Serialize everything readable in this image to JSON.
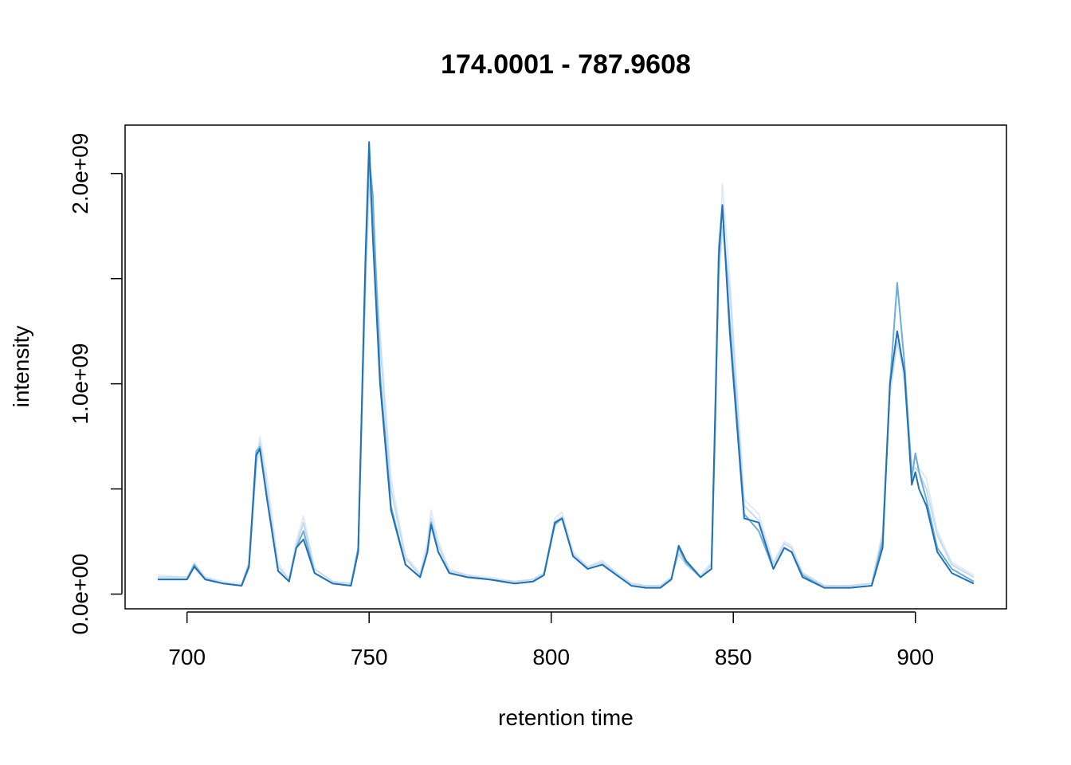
{
  "chart_data": {
    "type": "line",
    "title": "174.0001 - 787.9608",
    "xlabel": "retention time",
    "ylabel": "intensity",
    "xlim": [
      683,
      925
    ],
    "ylim": [
      -70000000.0,
      2230000000.0
    ],
    "x_ticks": [
      700,
      750,
      800,
      850,
      900
    ],
    "x_tick_labels": [
      "700",
      "750",
      "800",
      "850",
      "900"
    ],
    "y_ticks": [
      0,
      500000000.0,
      1000000000.0,
      1500000000.0,
      2000000000.0
    ],
    "y_tick_labels": [
      "0.0e+00",
      "",
      "1.0e+09",
      "",
      "2.0e+09"
    ],
    "grid": false,
    "series": [
      {
        "color": "#deebf7",
        "x": [
          692,
          700,
          702,
          705,
          710,
          715,
          717,
          719,
          720,
          722,
          725,
          728,
          730,
          732,
          735,
          740,
          745,
          747,
          749,
          750,
          751,
          753,
          756,
          760,
          764,
          766,
          767,
          769,
          772,
          777,
          783,
          790,
          795,
          798,
          801,
          803,
          806,
          810,
          814,
          818,
          822,
          826,
          830,
          833,
          835,
          837,
          841,
          844,
          845,
          846,
          847,
          849,
          853,
          857,
          861,
          864,
          866,
          869,
          875,
          882,
          888,
          891,
          893,
          895,
          897,
          899,
          900,
          901,
          903,
          906,
          910,
          916
        ],
        "y": [
          90000000.0,
          80000000.0,
          150000000.0,
          80000000.0,
          60000000.0,
          50000000.0,
          150000000.0,
          600000000.0,
          750000000.0,
          550000000.0,
          150000000.0,
          70000000.0,
          250000000.0,
          370000000.0,
          120000000.0,
          60000000.0,
          50000000.0,
          220000000.0,
          1500000000.0,
          2000000000.0,
          1750000000.0,
          1250000000.0,
          550000000.0,
          180000000.0,
          100000000.0,
          250000000.0,
          400000000.0,
          250000000.0,
          120000000.0,
          90000000.0,
          80000000.0,
          60000000.0,
          70000000.0,
          100000000.0,
          360000000.0,
          390000000.0,
          200000000.0,
          130000000.0,
          160000000.0,
          100000000.0,
          50000000.0,
          40000000.0,
          40000000.0,
          80000000.0,
          200000000.0,
          150000000.0,
          90000000.0,
          150000000.0,
          800000000.0,
          1550000000.0,
          1950000000.0,
          1500000000.0,
          450000000.0,
          380000000.0,
          150000000.0,
          250000000.0,
          230000000.0,
          100000000.0,
          40000000.0,
          40000000.0,
          50000000.0,
          300000000.0,
          1000000000.0,
          1250000000.0,
          1000000000.0,
          620000000.0,
          650000000.0,
          600000000.0,
          550000000.0,
          300000000.0,
          150000000.0,
          90000000.0
        ]
      },
      {
        "color": "#c6dbef",
        "x": [
          692,
          700,
          702,
          705,
          710,
          715,
          717,
          719,
          720,
          722,
          725,
          728,
          730,
          732,
          735,
          740,
          745,
          747,
          749,
          750,
          751,
          753,
          756,
          760,
          764,
          766,
          767,
          769,
          772,
          777,
          783,
          790,
          795,
          798,
          801,
          803,
          806,
          810,
          814,
          818,
          822,
          826,
          830,
          833,
          835,
          837,
          841,
          844,
          845,
          846,
          847,
          849,
          853,
          857,
          861,
          864,
          866,
          869,
          875,
          882,
          888,
          891,
          893,
          895,
          897,
          899,
          900,
          901,
          903,
          906,
          910,
          916
        ],
        "y": [
          80000000.0,
          80000000.0,
          130000000.0,
          80000000.0,
          50000000.0,
          40000000.0,
          120000000.0,
          600000000.0,
          720000000.0,
          500000000.0,
          130000000.0,
          70000000.0,
          230000000.0,
          340000000.0,
          120000000.0,
          60000000.0,
          50000000.0,
          200000000.0,
          1450000000.0,
          1950000000.0,
          1800000000.0,
          1200000000.0,
          500000000.0,
          170000000.0,
          90000000.0,
          220000000.0,
          360000000.0,
          230000000.0,
          110000000.0,
          90000000.0,
          70000000.0,
          60000000.0,
          70000000.0,
          100000000.0,
          340000000.0,
          370000000.0,
          190000000.0,
          130000000.0,
          150000000.0,
          100000000.0,
          50000000.0,
          40000000.0,
          40000000.0,
          80000000.0,
          190000000.0,
          140000000.0,
          80000000.0,
          140000000.0,
          750000000.0,
          1500000000.0,
          1750000000.0,
          1450000000.0,
          420000000.0,
          350000000.0,
          140000000.0,
          240000000.0,
          220000000.0,
          100000000.0,
          40000000.0,
          40000000.0,
          50000000.0,
          280000000.0,
          950000000.0,
          1200000000.0,
          1050000000.0,
          600000000.0,
          600000000.0,
          580000000.0,
          500000000.0,
          280000000.0,
          140000000.0,
          80000000.0
        ]
      },
      {
        "color": "#6baed6",
        "x": [
          692,
          700,
          702,
          705,
          710,
          715,
          717,
          719,
          720,
          722,
          725,
          728,
          730,
          732,
          735,
          740,
          745,
          747,
          749,
          750,
          751,
          753,
          756,
          760,
          764,
          766,
          767,
          769,
          772,
          777,
          783,
          790,
          795,
          798,
          801,
          803,
          806,
          810,
          814,
          818,
          822,
          826,
          830,
          833,
          835,
          837,
          841,
          844,
          845,
          846,
          847,
          849,
          853,
          857,
          861,
          864,
          866,
          869,
          875,
          882,
          888,
          891,
          893,
          895,
          897,
          899,
          900,
          901,
          903,
          906,
          910,
          916
        ],
        "y": [
          70000000.0,
          70000000.0,
          140000000.0,
          70000000.0,
          50000000.0,
          40000000.0,
          140000000.0,
          680000000.0,
          700000000.0,
          450000000.0,
          110000000.0,
          60000000.0,
          220000000.0,
          300000000.0,
          100000000.0,
          50000000.0,
          40000000.0,
          220000000.0,
          1550000000.0,
          2080000000.0,
          1900000000.0,
          1050000000.0,
          420000000.0,
          140000000.0,
          80000000.0,
          200000000.0,
          340000000.0,
          200000000.0,
          100000000.0,
          80000000.0,
          70000000.0,
          50000000.0,
          60000000.0,
          90000000.0,
          330000000.0,
          360000000.0,
          180000000.0,
          120000000.0,
          140000000.0,
          90000000.0,
          40000000.0,
          30000000.0,
          30000000.0,
          70000000.0,
          220000000.0,
          150000000.0,
          80000000.0,
          120000000.0,
          800000000.0,
          1650000000.0,
          1850000000.0,
          1300000000.0,
          380000000.0,
          300000000.0,
          120000000.0,
          220000000.0,
          200000000.0,
          90000000.0,
          30000000.0,
          30000000.0,
          40000000.0,
          250000000.0,
          1000000000.0,
          1480000000.0,
          1100000000.0,
          550000000.0,
          670000000.0,
          580000000.0,
          450000000.0,
          220000000.0,
          120000000.0,
          60000000.0
        ]
      },
      {
        "color": "#2171b5",
        "x": [
          692,
          700,
          702,
          705,
          710,
          715,
          717,
          719,
          720,
          722,
          725,
          728,
          730,
          732,
          735,
          740,
          745,
          747,
          749,
          750,
          751,
          753,
          756,
          760,
          764,
          766,
          767,
          769,
          772,
          777,
          783,
          790,
          795,
          798,
          801,
          803,
          806,
          810,
          814,
          818,
          822,
          826,
          830,
          833,
          835,
          837,
          841,
          844,
          845,
          846,
          847,
          849,
          853,
          857,
          861,
          864,
          866,
          869,
          875,
          882,
          888,
          891,
          893,
          895,
          897,
          899,
          900,
          901,
          903,
          906,
          910,
          916
        ],
        "y": [
          70000000.0,
          70000000.0,
          130000000.0,
          70000000.0,
          50000000.0,
          40000000.0,
          130000000.0,
          660000000.0,
          690000000.0,
          450000000.0,
          110000000.0,
          60000000.0,
          220000000.0,
          260000000.0,
          100000000.0,
          50000000.0,
          40000000.0,
          200000000.0,
          1600000000.0,
          2150000000.0,
          1700000000.0,
          1000000000.0,
          400000000.0,
          140000000.0,
          80000000.0,
          200000000.0,
          330000000.0,
          200000000.0,
          100000000.0,
          80000000.0,
          70000000.0,
          50000000.0,
          60000000.0,
          90000000.0,
          340000000.0,
          360000000.0,
          180000000.0,
          120000000.0,
          140000000.0,
          90000000.0,
          40000000.0,
          30000000.0,
          30000000.0,
          70000000.0,
          230000000.0,
          160000000.0,
          80000000.0,
          120000000.0,
          850000000.0,
          1600000000.0,
          1850000000.0,
          1250000000.0,
          360000000.0,
          340000000.0,
          120000000.0,
          220000000.0,
          200000000.0,
          80000000.0,
          30000000.0,
          30000000.0,
          40000000.0,
          220000000.0,
          1000000000.0,
          1250000000.0,
          1050000000.0,
          520000000.0,
          580000000.0,
          500000000.0,
          420000000.0,
          200000000.0,
          100000000.0,
          50000000.0
        ]
      }
    ]
  }
}
